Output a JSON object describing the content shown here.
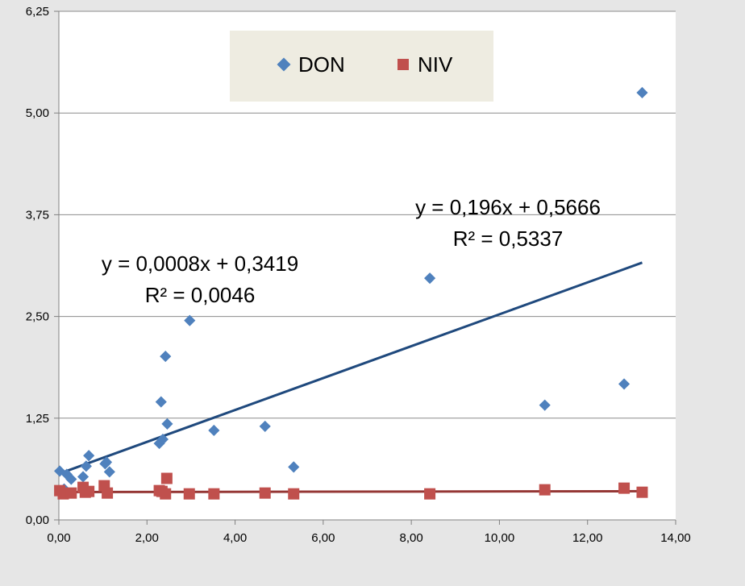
{
  "chart_data": {
    "type": "scatter",
    "xlim": [
      0,
      14
    ],
    "ylim": [
      0,
      6.25
    ],
    "x_ticks": [
      0,
      2,
      4,
      6,
      8,
      10,
      12,
      14
    ],
    "y_ticks": [
      0,
      1.25,
      2.5,
      3.75,
      5,
      6.25
    ],
    "x_tick_labels": [
      "0,00",
      "2,00",
      "4,00",
      "6,00",
      "8,00",
      "10,00",
      "12,00",
      "14,00"
    ],
    "y_tick_labels": [
      "0,00",
      "1,25",
      "2,50",
      "3,75",
      "5,00",
      "6,25"
    ],
    "grid": "horizontal",
    "legend": {
      "position": "top-center",
      "entries": [
        {
          "label": "DON",
          "marker": "diamond",
          "color": "#4f81bd"
        },
        {
          "label": "NIV",
          "marker": "square",
          "color": "#c0504d"
        }
      ]
    },
    "series": [
      {
        "name": "DON",
        "marker": "diamond",
        "color": "#4f81bd",
        "x": [
          0.02,
          0.12,
          0.18,
          0.28,
          0.55,
          0.62,
          0.68,
          1.05,
          1.08,
          1.15,
          2.28,
          2.32,
          2.36,
          2.42,
          2.46,
          2.97,
          3.52,
          4.68,
          5.33,
          8.42,
          11.03,
          12.83,
          13.24
        ],
        "y": [
          0.6,
          0.38,
          0.56,
          0.5,
          0.53,
          0.66,
          0.79,
          0.69,
          0.71,
          0.59,
          0.94,
          1.45,
          0.99,
          2.01,
          1.18,
          2.45,
          1.1,
          1.15,
          0.65,
          2.97,
          1.41,
          1.67,
          5.25
        ],
        "trendline": {
          "slope": 0.196,
          "intercept": 0.5666,
          "x_range": [
            0,
            13.24
          ],
          "color": "#1f497d",
          "equation": "y = 0,196x + 0,5666",
          "r2": "R² = 0,5337"
        }
      },
      {
        "name": "NIV",
        "marker": "square",
        "color": "#c0504d",
        "x": [
          0.02,
          0.1,
          0.28,
          0.55,
          0.6,
          0.68,
          1.03,
          1.1,
          2.28,
          2.34,
          2.42,
          2.45,
          2.96,
          3.52,
          4.68,
          5.33,
          8.42,
          11.03,
          12.83,
          13.24
        ],
        "y": [
          0.36,
          0.32,
          0.33,
          0.4,
          0.34,
          0.35,
          0.42,
          0.33,
          0.36,
          0.35,
          0.32,
          0.51,
          0.32,
          0.32,
          0.33,
          0.32,
          0.32,
          0.37,
          0.39,
          0.34
        ],
        "trendline": {
          "slope": 0.0008,
          "intercept": 0.3419,
          "x_range": [
            0,
            13.24
          ],
          "color": "#953735",
          "equation": "y = 0,0008x + 0,3419",
          "r2": "R² = 0,0046"
        }
      }
    ]
  }
}
